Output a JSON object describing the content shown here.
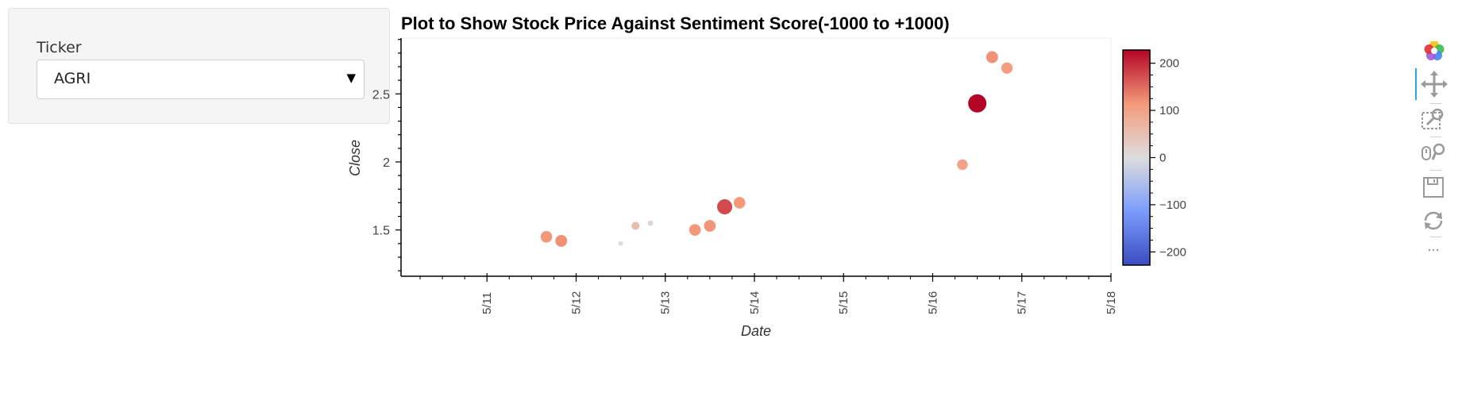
{
  "widget": {
    "label": "Ticker",
    "selected": "AGRI"
  },
  "chart_data": {
    "type": "scatter",
    "title": "Plot to Show Stock Price Against Sentiment Score(-1000 to +1000)",
    "xlabel": "Date",
    "ylabel": "Close",
    "x_ticks": [
      "5/11",
      "5/12",
      "5/13",
      "5/14",
      "5/15",
      "5/16",
      "5/17",
      "5/18"
    ],
    "xlim": [
      "5/10 0:52",
      "5/18 0:00"
    ],
    "y_ticks": [
      "1.5",
      "2",
      "2.5"
    ],
    "y_tick_values": [
      1.5,
      2.0,
      2.5
    ],
    "ylim": [
      1.16,
      2.91
    ],
    "grid": false,
    "points": [
      {
        "x": "5/11 16:00",
        "y": 1.45,
        "score": 115
      },
      {
        "x": "5/11 20:00",
        "y": 1.42,
        "score": 120
      },
      {
        "x": "5/12 12:00",
        "y": 1.4,
        "score": 2
      },
      {
        "x": "5/12 16:00",
        "y": 1.53,
        "score": 55
      },
      {
        "x": "5/12 20:00",
        "y": 1.55,
        "score": 12
      },
      {
        "x": "5/13 08:00",
        "y": 1.5,
        "score": 115
      },
      {
        "x": "5/13 12:00",
        "y": 1.53,
        "score": 118
      },
      {
        "x": "5/13 16:00",
        "y": 1.67,
        "score": 175
      },
      {
        "x": "5/13 20:00",
        "y": 1.7,
        "score": 115
      },
      {
        "x": "5/16 08:00",
        "y": 1.98,
        "score": 100
      },
      {
        "x": "5/16 12:00",
        "y": 2.43,
        "score": 228
      },
      {
        "x": "5/16 16:00",
        "y": 2.77,
        "score": 120
      },
      {
        "x": "5/16 20:00",
        "y": 2.69,
        "score": 110
      }
    ],
    "colorbar": {
      "ticks": [
        "200",
        "100",
        "0",
        "−100",
        "−200"
      ],
      "tick_values": [
        200,
        100,
        0,
        -100,
        -200
      ],
      "range": [
        -228,
        228
      ],
      "colormap": "coolwarm",
      "colors": [
        "#3b4cc0",
        "#7a9cfb",
        "#dddddd",
        "#f49a7b",
        "#b40426"
      ]
    }
  },
  "toolbar": {
    "tools": [
      "bokeh-logo-icon",
      "pan-icon",
      "box-zoom-icon",
      "wheel-zoom-icon",
      "save-icon",
      "reset-icon",
      "more-icon"
    ]
  }
}
